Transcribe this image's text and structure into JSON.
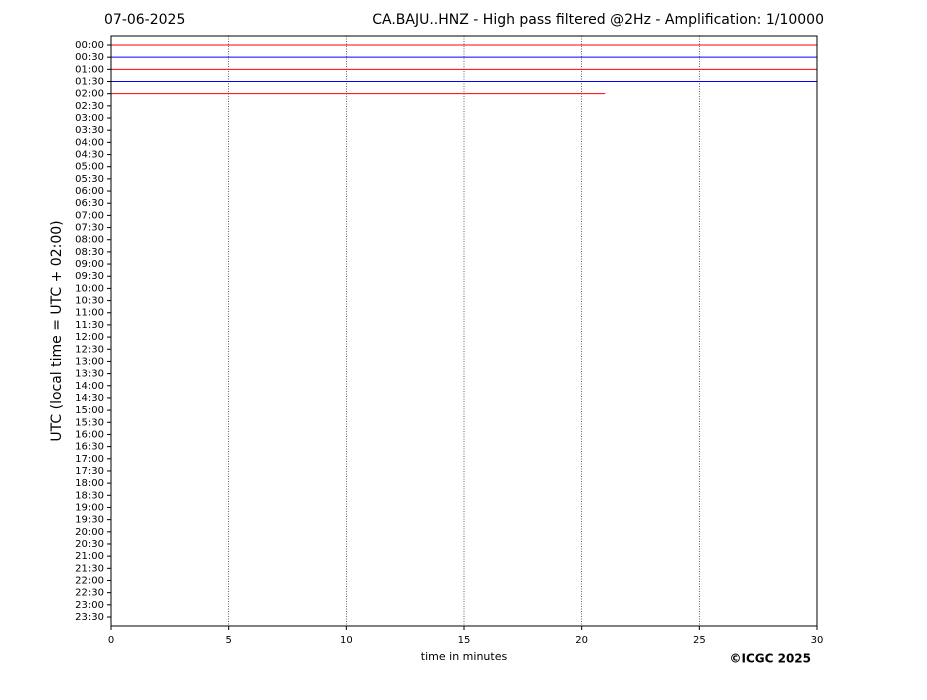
{
  "chart_data": {
    "type": "helicorder",
    "date": "07-06-2025",
    "title": "CA.BAJU..HNZ - High pass filtered @2Hz - Amplification: 1/10000",
    "xlabel": "time in minutes",
    "ylabel": "UTC (local time = UTC + 02:00)",
    "credit": "©ICGC 2025",
    "categories": [
      "00:00",
      "00:30",
      "01:00",
      "01:30",
      "02:00",
      "02:30",
      "03:00",
      "03:30",
      "04:00",
      "04:30",
      "05:00",
      "05:30",
      "06:00",
      "06:30",
      "07:00",
      "07:30",
      "08:00",
      "08:30",
      "09:00",
      "09:30",
      "10:00",
      "10:30",
      "11:00",
      "11:30",
      "12:00",
      "12:30",
      "13:00",
      "13:30",
      "14:00",
      "14:30",
      "15:00",
      "15:30",
      "16:00",
      "16:30",
      "17:00",
      "17:30",
      "18:00",
      "18:30",
      "19:00",
      "19:30",
      "20:00",
      "20:30",
      "21:00",
      "21:30",
      "22:00",
      "22:30",
      "23:00",
      "23:30"
    ],
    "series": [
      {
        "color": "#ff0000",
        "x": [
          0,
          30
        ],
        "values": [
          0,
          0
        ]
      },
      {
        "color": "#0000ff",
        "x": [
          0,
          30
        ],
        "values": [
          0,
          0
        ]
      },
      {
        "color": "#ff0000",
        "x": [
          0,
          30
        ],
        "values": [
          0,
          0
        ]
      },
      {
        "color": "#0000ff",
        "x": [
          0,
          30
        ],
        "values": [
          0,
          0
        ]
      },
      {
        "color": "#ff0000",
        "x": [
          0,
          21
        ],
        "values": [
          0,
          0
        ]
      }
    ],
    "xlim": [
      0,
      30
    ],
    "xticks": [
      0,
      5,
      10,
      15,
      20,
      25,
      30
    ],
    "grid": true
  }
}
